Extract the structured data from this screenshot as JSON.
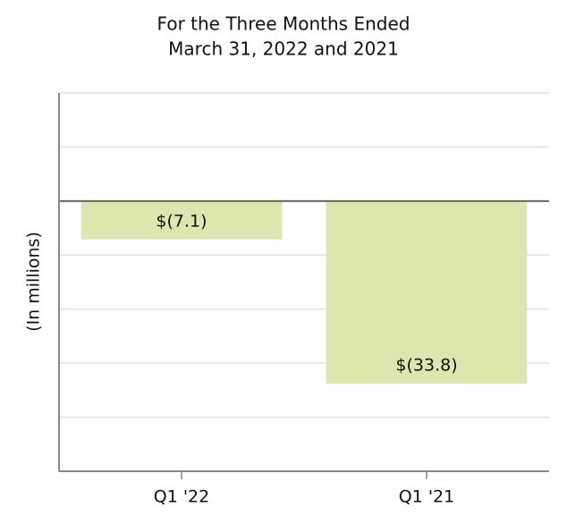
{
  "chart_data": {
    "type": "bar",
    "title": [
      "For the Three Months Ended",
      "March 31, 2022 and 2021"
    ],
    "y_label": "(In millions)",
    "categories": [
      "Q1 '22",
      "Q1 '21"
    ],
    "values": [
      -7.1,
      -33.8
    ],
    "value_labels": [
      "$(7.1)",
      "$(33.8)"
    ],
    "color": "#dce6ad",
    "ylim": [
      -50,
      20
    ],
    "yticks": [
      -40,
      -30,
      -20,
      -10,
      0,
      10,
      20
    ],
    "grid": true
  }
}
